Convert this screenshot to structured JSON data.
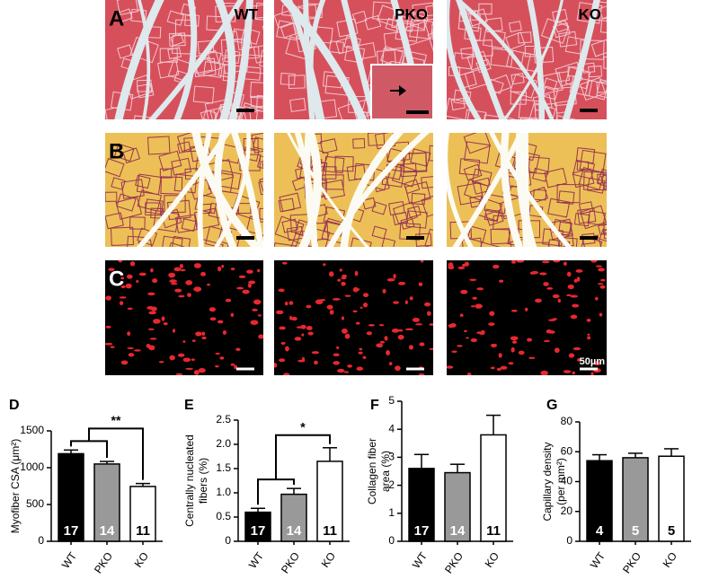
{
  "image_panels": {
    "rows": [
      "A",
      "B",
      "C"
    ],
    "columns": [
      "WT",
      "PKO",
      "KO"
    ],
    "scale_bar": "50µm"
  },
  "chart_data": [
    {
      "type": "bar",
      "letter": "D",
      "ylabel": [
        "Myofiber CSA (μm²)"
      ],
      "categories": [
        "WT",
        "PKO",
        "KO"
      ],
      "values": [
        1190,
        1050,
        745
      ],
      "errors": [
        50,
        35,
        40
      ],
      "sample_sizes": [
        17,
        14,
        11
      ],
      "colors": [
        "#000000",
        "#999999",
        "#ffffff"
      ],
      "ylim": [
        0,
        1500
      ],
      "yticks": [
        0,
        500,
        1000,
        1500
      ],
      "significance": "**"
    },
    {
      "type": "bar",
      "letter": "E",
      "ylabel": [
        "Centrally nucleated",
        "fibers (%)"
      ],
      "categories": [
        "WT",
        "PKO",
        "KO"
      ],
      "values": [
        0.6,
        0.97,
        1.65
      ],
      "errors": [
        0.08,
        0.12,
        0.28
      ],
      "sample_sizes": [
        17,
        14,
        11
      ],
      "colors": [
        "#000000",
        "#999999",
        "#ffffff"
      ],
      "ylim": [
        0,
        2.5
      ],
      "yticks": [
        0,
        0.5,
        {
          "value": 1,
          "label": "1.0"
        },
        1.5,
        {
          "value": 2,
          "label": "2.0"
        },
        2.5
      ],
      "significance": "*"
    },
    {
      "type": "bar",
      "letter": "F",
      "ylabel": [
        "Collagen fiber",
        "area (%)"
      ],
      "categories": [
        "WT",
        "PKO",
        "KO"
      ],
      "values": [
        2.6,
        2.45,
        3.8
      ],
      "errors": [
        0.5,
        0.3,
        0.7
      ],
      "sample_sizes": [
        17,
        14,
        11
      ],
      "colors": [
        "#000000",
        "#999999",
        "#ffffff"
      ],
      "ylim": [
        0,
        5
      ],
      "yticks": [
        0,
        1,
        2,
        3,
        4,
        5
      ]
    },
    {
      "type": "bar",
      "letter": "G",
      "ylabel": [
        "Capillary density",
        "(per mm²)"
      ],
      "categories": [
        "WT",
        "PKO",
        "KO"
      ],
      "values": [
        54,
        56,
        57
      ],
      "errors": [
        4,
        3,
        5
      ],
      "sample_sizes": [
        4,
        5,
        5
      ],
      "colors": [
        "#000000",
        "#999999",
        "#ffffff"
      ],
      "ylim": [
        0,
        80
      ],
      "yticks": [
        0,
        20,
        40,
        60,
        80
      ]
    }
  ]
}
